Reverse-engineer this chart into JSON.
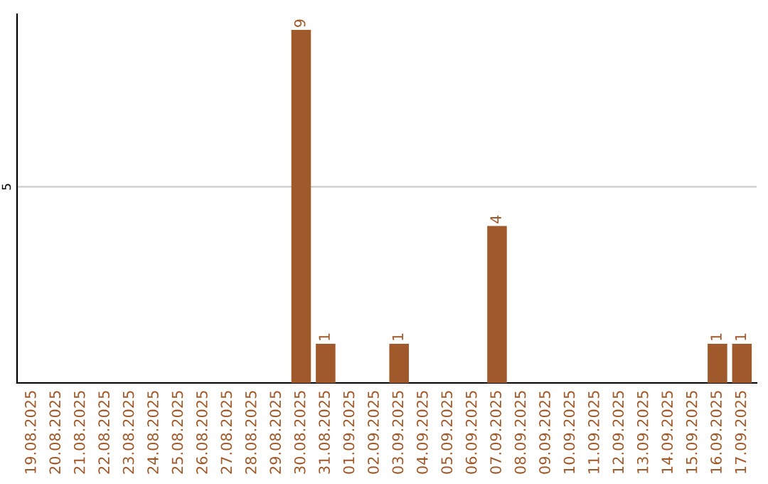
{
  "chart_data": {
    "type": "bar",
    "categories": [
      "19.08.2025",
      "20.08.2025",
      "21.08.2025",
      "22.08.2025",
      "23.08.2025",
      "24.08.2025",
      "25.08.2025",
      "26.08.2025",
      "27.08.2025",
      "28.08.2025",
      "29.08.2025",
      "30.08.2025",
      "31.08.2025",
      "01.09.2025",
      "02.09.2025",
      "03.09.2025",
      "04.09.2025",
      "05.09.2025",
      "06.09.2025",
      "07.09.2025",
      "08.09.2025",
      "09.09.2025",
      "10.09.2025",
      "11.09.2025",
      "12.09.2025",
      "13.09.2025",
      "14.09.2025",
      "15.09.2025",
      "16.09.2025",
      "17.09.2025"
    ],
    "values": [
      0,
      0,
      0,
      0,
      0,
      0,
      0,
      0,
      0,
      0,
      0,
      9,
      1,
      0,
      0,
      1,
      0,
      0,
      0,
      4,
      0,
      0,
      0,
      0,
      0,
      0,
      0,
      0,
      1,
      1
    ],
    "value_labels": [
      null,
      null,
      null,
      null,
      null,
      null,
      null,
      null,
      null,
      null,
      null,
      "9",
      "1",
      null,
      null,
      "1",
      null,
      null,
      null,
      "4",
      null,
      null,
      null,
      null,
      null,
      null,
      null,
      null,
      "1",
      "1"
    ],
    "color": "#a0592a",
    "ylim": [
      0,
      9.4
    ],
    "yticks": [
      5
    ],
    "grid": "y"
  }
}
